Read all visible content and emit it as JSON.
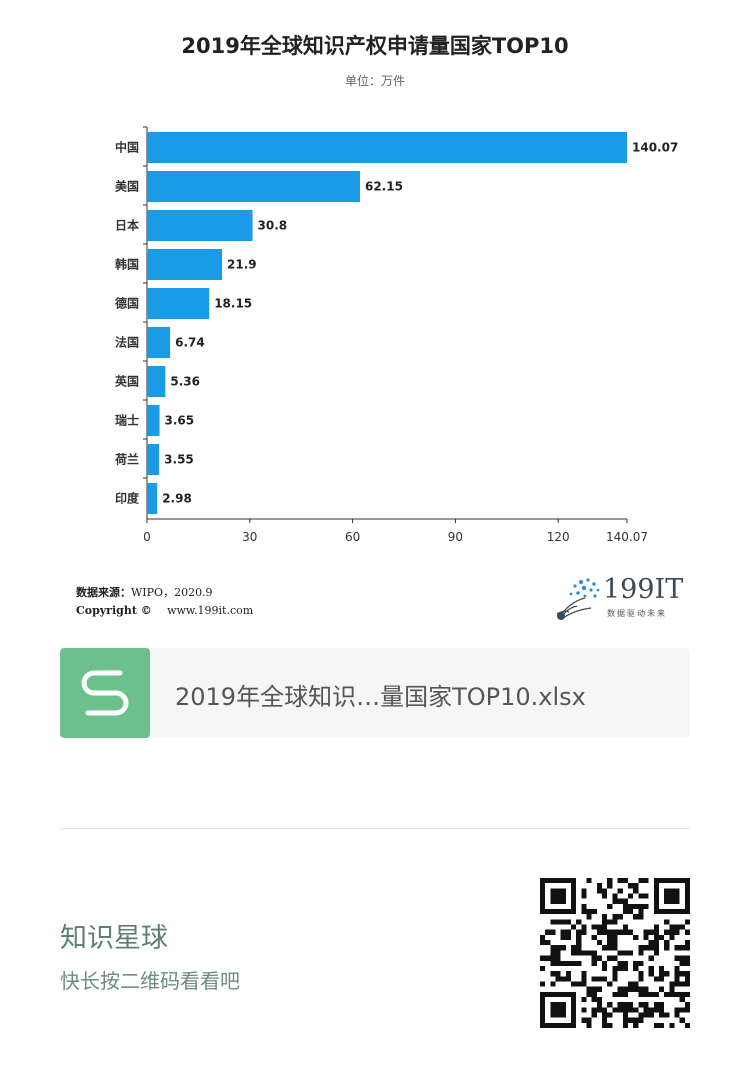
{
  "chart_data": {
    "type": "bar",
    "orientation": "horizontal",
    "title": "2019年全球知识产权申请量国家TOP10",
    "subtitle": "单位：万件",
    "categories": [
      "中国",
      "美国",
      "日本",
      "韩国",
      "德国",
      "法国",
      "英国",
      "瑞士",
      "荷兰",
      "印度"
    ],
    "values": [
      140.07,
      62.15,
      30.8,
      21.9,
      18.15,
      6.74,
      5.36,
      3.65,
      3.55,
      2.98
    ],
    "value_labels": [
      "140.07",
      "62.15",
      "30.8",
      "21.9",
      "18.15",
      "6.74",
      "5.36",
      "3.65",
      "3.55",
      "2.98"
    ],
    "xticks": [
      0,
      30,
      60,
      90,
      120,
      140.07
    ],
    "xtick_labels": [
      "0",
      "30",
      "60",
      "90",
      "120",
      "140.07"
    ],
    "xlim": [
      0,
      140.07
    ],
    "grid": false,
    "bar_color": "#1a9be6"
  },
  "source": {
    "label": "数据来源：",
    "value": "WIPO，2020.9",
    "copyright_label": "Copyright ©",
    "copyright_value": "www.199it.com"
  },
  "logo": {
    "text": "199IT",
    "tagline": "数据驱动未来"
  },
  "file_card": {
    "icon": "s-logo-icon",
    "filename": "2019年全球知识…量国家TOP10.xlsx",
    "icon_color": "#6cc08b"
  },
  "footer": {
    "title": "知识星球",
    "subtitle": "快长按二维码看看吧",
    "qr_icon": "qr-code-icon"
  }
}
